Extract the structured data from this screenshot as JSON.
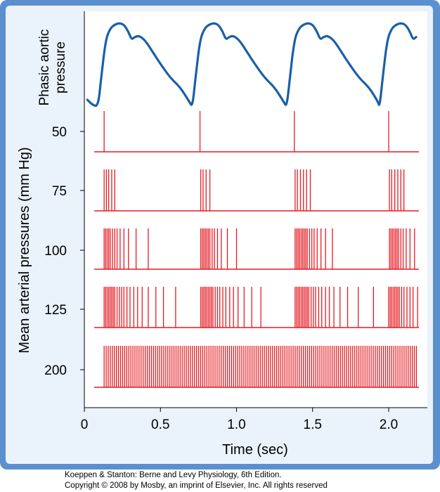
{
  "credit": {
    "line1": "Koeppen & Stanton: Berne and Levy Physiology, 6th Edition.",
    "line2": "Copyright © 2008 by Mosby, an imprint of Elsevier, Inc. All rights reserved"
  },
  "colors": {
    "frame": "#5b8fd0",
    "panel": "#eaf2fb",
    "plot": "#ffffff",
    "pressure_trace": "#1a5fa8",
    "spikes": "#e41c23"
  },
  "chart_data": {
    "type": "line",
    "title": "",
    "xlabel": "Time (sec)",
    "ylabel": "Mean arterial pressures (mm Hg)",
    "xlim": [
      0,
      2.2
    ],
    "x_ticks": [
      "0",
      "0.5",
      "1.0",
      "1.5",
      "2.0"
    ],
    "x_tick_values": [
      0,
      0.5,
      1.0,
      1.5,
      2.0
    ],
    "grid": false,
    "legend": "none",
    "pressure_trace": {
      "label_lines": [
        "Phasic aortic",
        "pressure"
      ],
      "beat_starts": [
        0.09,
        0.71,
        1.33,
        1.94
      ],
      "beat_shape": [
        [
          0.0,
          -0.28
        ],
        [
          0.02,
          0.15
        ],
        [
          0.05,
          0.74
        ],
        [
          0.08,
          0.91
        ],
        [
          0.11,
          0.97
        ],
        [
          0.14,
          0.99
        ],
        [
          0.17,
          0.97
        ],
        [
          0.2,
          0.86
        ],
        [
          0.22,
          0.74
        ],
        [
          0.24,
          0.78
        ],
        [
          0.27,
          0.8
        ],
        [
          0.31,
          0.73
        ],
        [
          0.36,
          0.55
        ],
        [
          0.42,
          0.34
        ],
        [
          0.48,
          0.15
        ],
        [
          0.54,
          0.02
        ],
        [
          0.6,
          -0.2
        ]
      ],
      "pre_beat": [
        [
          0.02,
          -0.17
        ],
        [
          0.05,
          -0.24
        ]
      ],
      "last_beat_end": 2.18
    },
    "spike_trains": [
      {
        "pressure": "50",
        "spikes": [
          0.13,
          0.76,
          1.38,
          2.0
        ]
      },
      {
        "pressure": "75",
        "spikes": [
          0.13,
          0.145,
          0.16,
          0.18,
          0.2,
          0.765,
          0.78,
          0.8,
          0.825,
          1.385,
          1.4,
          1.42,
          1.44,
          1.46,
          1.485,
          2.005,
          2.02,
          2.04,
          2.06,
          2.08,
          2.1
        ]
      },
      {
        "pressure": "100",
        "spikes": [
          0.13,
          0.14,
          0.15,
          0.16,
          0.17,
          0.185,
          0.2,
          0.215,
          0.235,
          0.26,
          0.29,
          0.34,
          0.42,
          0.765,
          0.775,
          0.785,
          0.795,
          0.805,
          0.815,
          0.825,
          0.84,
          0.855,
          0.875,
          0.9,
          0.94,
          1.0,
          1.385,
          1.395,
          1.405,
          1.415,
          1.425,
          1.435,
          1.445,
          1.455,
          1.465,
          1.48,
          1.495,
          1.51,
          1.53,
          1.555,
          1.585,
          1.63,
          2.005,
          2.015,
          2.025,
          2.035,
          2.045,
          2.055,
          2.065,
          2.08,
          2.095,
          2.115,
          2.14,
          2.17
        ]
      },
      {
        "pressure": "125",
        "spikes": [
          0.13,
          0.14,
          0.15,
          0.16,
          0.17,
          0.18,
          0.19,
          0.2,
          0.215,
          0.23,
          0.245,
          0.26,
          0.28,
          0.3,
          0.325,
          0.35,
          0.38,
          0.42,
          0.47,
          0.52,
          0.6,
          0.765,
          0.775,
          0.785,
          0.795,
          0.805,
          0.815,
          0.825,
          0.835,
          0.845,
          0.86,
          0.875,
          0.89,
          0.91,
          0.93,
          0.955,
          0.98,
          1.01,
          1.05,
          1.1,
          1.16,
          1.385,
          1.395,
          1.405,
          1.415,
          1.425,
          1.435,
          1.445,
          1.455,
          1.465,
          1.475,
          1.49,
          1.505,
          1.52,
          1.54,
          1.56,
          1.585,
          1.61,
          1.64,
          1.68,
          1.73,
          1.8,
          1.9,
          2.0,
          2.01,
          2.02,
          2.03,
          2.04,
          2.05,
          2.06,
          2.07,
          2.085,
          2.1,
          2.12,
          2.14,
          2.16,
          2.19
        ]
      },
      {
        "pressure": "200",
        "spikes_from": 0.13,
        "spikes_to": 2.19,
        "spike_interval": 0.0135
      }
    ]
  }
}
